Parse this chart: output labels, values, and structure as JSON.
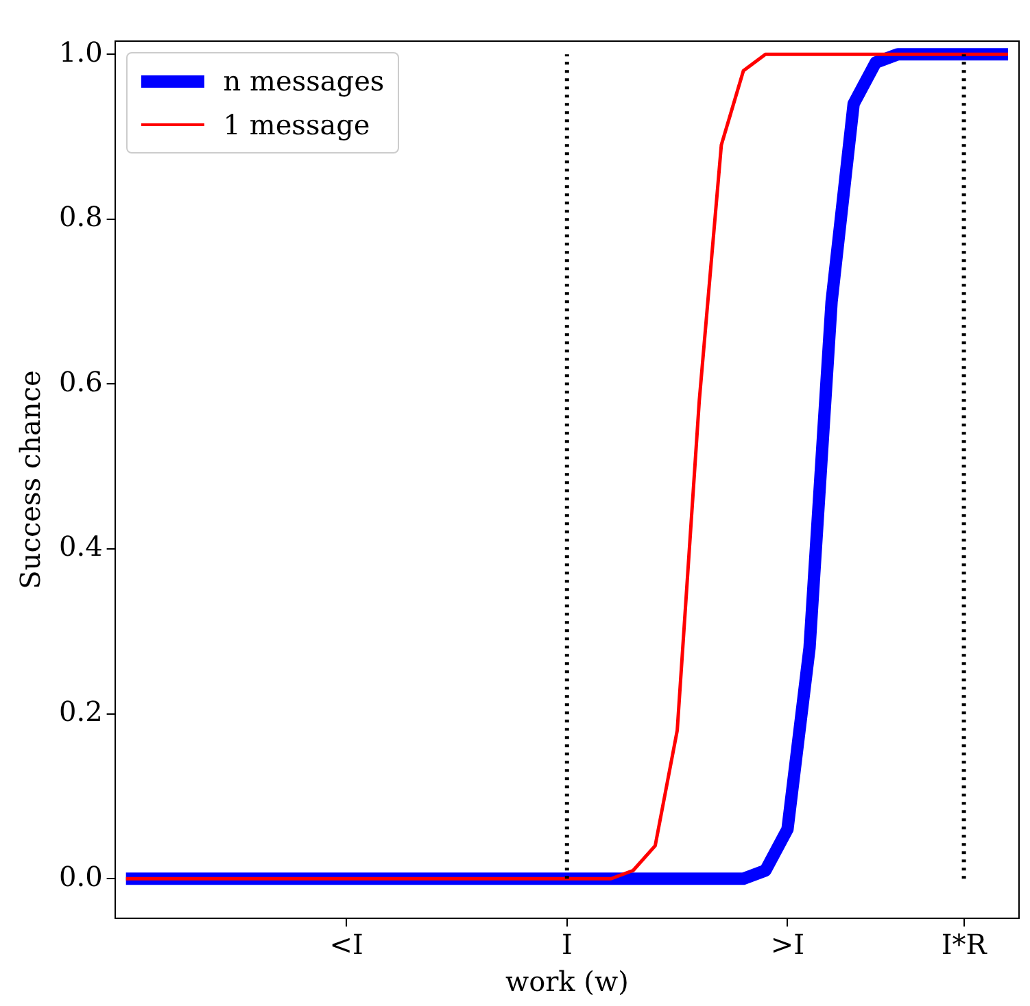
{
  "chart_data": {
    "type": "line",
    "xlabel": "work (w)",
    "ylabel": "Success chance",
    "categories": [
      null,
      null,
      null,
      null,
      null,
      null,
      null,
      null,
      null,
      null,
      "<I",
      null,
      null,
      null,
      null,
      null,
      null,
      null,
      null,
      null,
      "I",
      null,
      null,
      null,
      null,
      null,
      null,
      null,
      null,
      null,
      ">I",
      null,
      null,
      null,
      null,
      null,
      null,
      null,
      "I*R",
      null,
      null
    ],
    "ylim": [
      -0.048,
      1.016
    ],
    "yticks": [
      {
        "value": 0,
        "label": "0.0"
      },
      {
        "value": 0.2,
        "label": "0.2"
      },
      {
        "value": 0.4,
        "label": "0.4"
      },
      {
        "value": 0.6,
        "label": "0.6"
      },
      {
        "value": 0.8,
        "label": "0.8"
      },
      {
        "value": 1,
        "label": "1.0"
      }
    ],
    "series": [
      {
        "name": "n messages",
        "color": "#0000ff",
        "values": [
          0,
          0,
          0,
          0,
          0,
          0,
          0,
          0,
          0,
          0,
          0,
          0,
          0,
          0,
          0,
          0,
          0,
          0,
          0,
          0,
          0,
          0,
          0,
          0,
          0,
          0,
          0,
          0,
          0,
          0.01,
          0.06,
          0.28,
          0.7,
          0.94,
          0.99,
          1,
          1,
          1,
          1,
          1,
          1
        ]
      },
      {
        "name": "1 message",
        "color": "#ff0000",
        "values": [
          0,
          0,
          0,
          0,
          0,
          0,
          0,
          0,
          0,
          0,
          0,
          0,
          0,
          0,
          0,
          0,
          0,
          0,
          0,
          0,
          0,
          0,
          0,
          0.01,
          0.04,
          0.18,
          0.58,
          0.89,
          0.98,
          1,
          1,
          1,
          1,
          1,
          1,
          1,
          1,
          1,
          1,
          1,
          1
        ]
      }
    ],
    "ref_lines": [
      {
        "axis": "x",
        "value": "I",
        "color": "#000000",
        "line_style": "dotted"
      },
      {
        "axis": "x",
        "value": "I*R",
        "color": "#000000",
        "line_style": "dotted"
      }
    ],
    "legend": "top left",
    "grid": false,
    "marker": "none",
    "line_style": "solid"
  }
}
